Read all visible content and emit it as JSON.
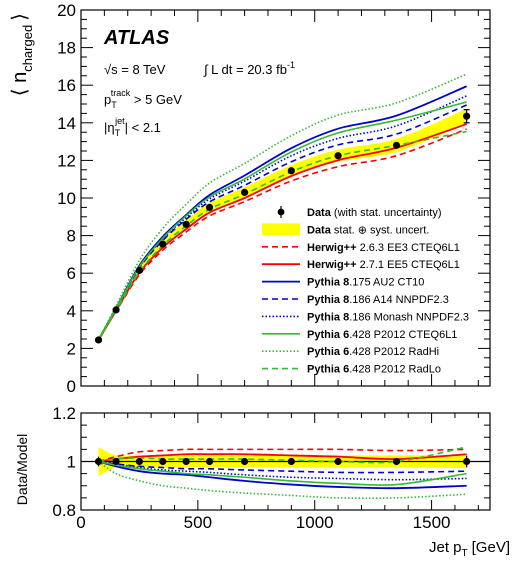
{
  "chart_data": {
    "type": "line",
    "main_panel": {
      "ylabel": "⟨ n",
      "ylabel_sub": "charged",
      "ylabel_close": "⟩",
      "ylim": [
        0,
        20
      ],
      "yticks": [
        0,
        2,
        4,
        6,
        8,
        10,
        12,
        14,
        16,
        18,
        20
      ],
      "xlim": [
        0,
        1750
      ]
    },
    "ratio_panel": {
      "ylabel": "Data/Model",
      "ylim": [
        0.8,
        1.2
      ],
      "yticks": [
        0.8,
        1,
        1.2
      ],
      "xlabel": "Jet p",
      "xlabel_sub": "T",
      "xlabel_unit": "[GeV]",
      "xticks": [
        0,
        500,
        1000,
        1500
      ],
      "reference_line": 1
    },
    "annotations": {
      "atlas": "ATLAS",
      "sqrt_s": "√s = 8 TeV",
      "lumi": "∫ L dt = 20.3 fb",
      "lumi_sup": "-1",
      "pt_track": "p",
      "pt_track_sub": "T",
      "pt_track_sup": "track",
      "pt_track_cut": " > 5 GeV",
      "eta": "|η",
      "eta_sub": "T",
      "eta_sup": "jet",
      "eta_cut": "| < 2.1"
    },
    "data": {
      "name_bold": "Data",
      "name_rest": " (with stat. uncertainty)",
      "band_bold": "Data",
      "band_rest": " stat. ⊕ syst. uncert.",
      "band_color": "#ffff00",
      "x": [
        75,
        150,
        250,
        350,
        450,
        550,
        700,
        900,
        1100,
        1350,
        1650
      ],
      "y": [
        2.45,
        4.05,
        6.15,
        7.55,
        8.6,
        9.5,
        10.3,
        11.45,
        12.25,
        12.8,
        14.35
      ],
      "stat_err": [
        0.05,
        0.05,
        0.05,
        0.05,
        0.05,
        0.05,
        0.05,
        0.06,
        0.08,
        0.1,
        0.35
      ],
      "band_half_width": [
        0.15,
        0.12,
        0.18,
        0.2,
        0.22,
        0.24,
        0.27,
        0.3,
        0.32,
        0.35,
        0.4
      ],
      "ratio_band_half_width": [
        0.06,
        0.025,
        0.025,
        0.025,
        0.025,
        0.025,
        0.025,
        0.025,
        0.025,
        0.025,
        0.028
      ],
      "ratio_stat_err": [
        0.02,
        0.005,
        0.005,
        0.005,
        0.005,
        0.005,
        0.005,
        0.005,
        0.007,
        0.008,
        0.024
      ]
    },
    "series": [
      {
        "name_bold": "Herwig++",
        "name_rest": " 2.6.3 EE3 CTEQ6L1",
        "color": "#ff0000",
        "dash": "6,4",
        "width": 1.6,
        "ratio": [
          1.0,
          1.02,
          1.04,
          1.045,
          1.05,
          1.05,
          1.05,
          1.05,
          1.05,
          1.045,
          1.05
        ]
      },
      {
        "name_bold": "Herwig++",
        "name_rest": " 2.7.1 EE5 CTEQ6L1",
        "color": "#ff0000",
        "dash": "",
        "width": 1.8,
        "ratio": [
          1.0,
          1.01,
          1.02,
          1.025,
          1.03,
          1.03,
          1.03,
          1.025,
          1.02,
          1.01,
          1.03
        ]
      },
      {
        "name_bold": "Pythia 8",
        "name_rest": ".175 AU2 CT10",
        "color": "#0000cc",
        "dash": "",
        "width": 1.8,
        "ratio": [
          1.0,
          0.98,
          0.96,
          0.95,
          0.945,
          0.935,
          0.92,
          0.905,
          0.895,
          0.89,
          0.9
        ]
      },
      {
        "name_bold": "Pythia 8",
        "name_rest": ".186 A14 NNPDF2.3",
        "color": "#0000cc",
        "dash": "6,4",
        "width": 1.6,
        "ratio": [
          1.0,
          0.99,
          0.98,
          0.975,
          0.97,
          0.97,
          0.965,
          0.96,
          0.955,
          0.955,
          0.96
        ]
      },
      {
        "name_bold": "Pythia 8",
        "name_rest": ".186 Monash NNPDF2.3",
        "color": "#0000cc",
        "dash": "1.5,2",
        "width": 1.6,
        "ratio": [
          1.0,
          0.99,
          0.975,
          0.965,
          0.96,
          0.955,
          0.945,
          0.935,
          0.93,
          0.925,
          0.93
        ]
      },
      {
        "name_bold": "Pythia 6",
        "name_rest": ".428 P2012 CTEQ6L1",
        "color": "#33bb33",
        "dash": "",
        "width": 1.6,
        "ratio": [
          1.0,
          0.985,
          0.97,
          0.96,
          0.95,
          0.945,
          0.935,
          0.92,
          0.91,
          0.905,
          0.95
        ]
      },
      {
        "name_bold": "Pythia 6",
        "name_rest": ".428 P2012 RadHi",
        "color": "#33bb33",
        "dash": "1.5,2",
        "width": 1.6,
        "ratio": [
          1.0,
          0.95,
          0.92,
          0.9,
          0.89,
          0.88,
          0.87,
          0.86,
          0.85,
          0.85,
          0.865
        ]
      },
      {
        "name_bold": "Pythia 6",
        "name_rest": ".428 P2012 RadLo",
        "color": "#33bb33",
        "dash": "6,4",
        "width": 1.6,
        "ratio": [
          1.0,
          1.01,
          1.015,
          1.01,
          1.01,
          1.01,
          1.01,
          1.005,
          1.0,
          1.0,
          1.06
        ]
      }
    ]
  }
}
